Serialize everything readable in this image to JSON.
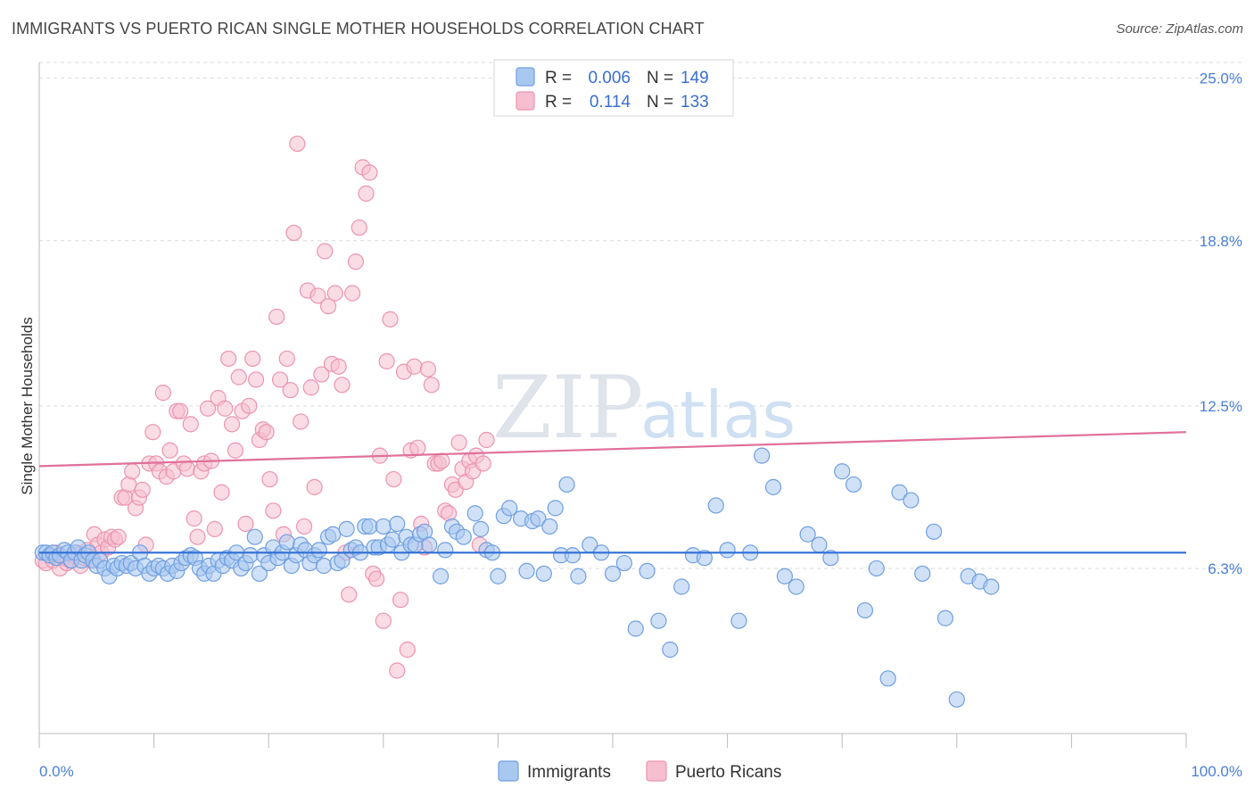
{
  "title": "IMMIGRANTS VS PUERTO RICAN SINGLE MOTHER HOUSEHOLDS CORRELATION CHART",
  "source": "Source: ZipAtlas.com",
  "watermark": {
    "zip": "ZIP",
    "atlas": "atlas"
  },
  "colors": {
    "blue_fill": "#a9c8f0",
    "blue_stroke": "#6f9fe0",
    "blue_line": "#2f6fd6",
    "pink_fill": "#f6bfd0",
    "pink_stroke": "#ec93b0",
    "pink_line": "#e0709a",
    "tick_text": "#4a7fd6",
    "grid": "#d9d9d9"
  },
  "legend": {
    "rows": [
      {
        "r_label": "R =",
        "r_value": "0.006",
        "n_label": "N =",
        "n_value": "149"
      },
      {
        "r_label": "R =",
        "r_value": "0.114",
        "n_label": "N =",
        "n_value": "133"
      }
    ]
  },
  "bottom_legend": {
    "series1": "Immigrants",
    "series2": "Puerto Ricans"
  },
  "chart_data": {
    "type": "scatter",
    "title": "IMMIGRANTS VS PUERTO RICAN SINGLE MOTHER HOUSEHOLDS CORRELATION CHART",
    "xlabel": "",
    "ylabel": "Single Mother Households",
    "xlim": [
      0,
      100
    ],
    "ylim": [
      0,
      25.6
    ],
    "x_tick_labels": [
      "0.0%",
      "100.0%"
    ],
    "y_ticks": [
      6.3,
      12.5,
      18.8,
      25.0
    ],
    "y_tick_labels": [
      "6.3%",
      "12.5%",
      "18.8%",
      "25.0%"
    ],
    "grid": true,
    "legend_position": "top-center",
    "series": [
      {
        "name": "Immigrants",
        "r": 0.006,
        "n": 149,
        "trend": {
          "x": [
            0,
            100
          ],
          "y": [
            6.9,
            6.9
          ]
        },
        "points": [
          [
            0.3,
            6.9
          ],
          [
            0.6,
            6.9
          ],
          [
            0.9,
            6.8
          ],
          [
            1.2,
            6.9
          ],
          [
            1.5,
            6.7
          ],
          [
            1.8,
            6.8
          ],
          [
            2.2,
            7.0
          ],
          [
            2.5,
            6.9
          ],
          [
            2.8,
            6.6
          ],
          [
            3.1,
            6.9
          ],
          [
            3.4,
            7.1
          ],
          [
            3.7,
            6.6
          ],
          [
            4.0,
            6.8
          ],
          [
            4.3,
            6.9
          ],
          [
            4.7,
            6.6
          ],
          [
            5.0,
            6.4
          ],
          [
            5.3,
            6.6
          ],
          [
            5.7,
            6.3
          ],
          [
            6.1,
            6.0
          ],
          [
            6.5,
            6.4
          ],
          [
            6.8,
            6.3
          ],
          [
            7.2,
            6.5
          ],
          [
            7.6,
            6.4
          ],
          [
            8.0,
            6.5
          ],
          [
            8.4,
            6.3
          ],
          [
            8.8,
            6.9
          ],
          [
            9.2,
            6.4
          ],
          [
            9.6,
            6.1
          ],
          [
            10.0,
            6.3
          ],
          [
            10.4,
            6.4
          ],
          [
            10.8,
            6.3
          ],
          [
            11.2,
            6.1
          ],
          [
            11.6,
            6.4
          ],
          [
            12.0,
            6.2
          ],
          [
            12.4,
            6.5
          ],
          [
            12.8,
            6.7
          ],
          [
            13.2,
            6.8
          ],
          [
            13.6,
            6.7
          ],
          [
            14.0,
            6.3
          ],
          [
            14.4,
            6.1
          ],
          [
            14.8,
            6.4
          ],
          [
            15.2,
            6.1
          ],
          [
            15.6,
            6.6
          ],
          [
            16.0,
            6.4
          ],
          [
            16.4,
            6.7
          ],
          [
            16.8,
            6.6
          ],
          [
            17.2,
            6.9
          ],
          [
            17.6,
            6.3
          ],
          [
            18.0,
            6.5
          ],
          [
            18.4,
            6.8
          ],
          [
            18.8,
            7.5
          ],
          [
            19.2,
            6.1
          ],
          [
            19.6,
            6.8
          ],
          [
            20.0,
            6.5
          ],
          [
            20.4,
            7.1
          ],
          [
            20.8,
            6.7
          ],
          [
            21.2,
            6.9
          ],
          [
            21.6,
            7.3
          ],
          [
            22.0,
            6.4
          ],
          [
            22.4,
            6.8
          ],
          [
            22.8,
            7.2
          ],
          [
            23.2,
            7.0
          ],
          [
            23.6,
            6.5
          ],
          [
            24.0,
            6.8
          ],
          [
            24.4,
            7.0
          ],
          [
            24.8,
            6.4
          ],
          [
            25.2,
            7.5
          ],
          [
            25.6,
            7.6
          ],
          [
            26.0,
            6.5
          ],
          [
            26.4,
            6.6
          ],
          [
            26.8,
            7.8
          ],
          [
            27.2,
            7.0
          ],
          [
            27.6,
            7.1
          ],
          [
            28.0,
            6.9
          ],
          [
            28.4,
            7.9
          ],
          [
            28.8,
            7.9
          ],
          [
            29.2,
            7.1
          ],
          [
            29.6,
            7.1
          ],
          [
            30.0,
            7.9
          ],
          [
            30.4,
            7.2
          ],
          [
            30.8,
            7.4
          ],
          [
            31.2,
            8.0
          ],
          [
            31.6,
            6.9
          ],
          [
            32.0,
            7.5
          ],
          [
            32.4,
            7.2
          ],
          [
            32.8,
            7.2
          ],
          [
            33.2,
            7.6
          ],
          [
            33.6,
            7.7
          ],
          [
            34.0,
            7.2
          ],
          [
            35.0,
            6.0
          ],
          [
            35.4,
            7.0
          ],
          [
            36.0,
            7.9
          ],
          [
            36.4,
            7.7
          ],
          [
            37.0,
            7.5
          ],
          [
            38.0,
            8.4
          ],
          [
            38.5,
            7.8
          ],
          [
            39.0,
            7.0
          ],
          [
            39.5,
            6.9
          ],
          [
            40.0,
            6.0
          ],
          [
            40.5,
            8.3
          ],
          [
            41.0,
            8.6
          ],
          [
            42.0,
            8.2
          ],
          [
            42.5,
            6.2
          ],
          [
            43.0,
            8.1
          ],
          [
            43.5,
            8.2
          ],
          [
            44.0,
            6.1
          ],
          [
            44.5,
            7.9
          ],
          [
            45.0,
            8.6
          ],
          [
            45.5,
            6.8
          ],
          [
            46.0,
            9.5
          ],
          [
            46.5,
            6.8
          ],
          [
            47.0,
            6.0
          ],
          [
            48.0,
            7.2
          ],
          [
            49.0,
            6.9
          ],
          [
            50.0,
            6.1
          ],
          [
            51.0,
            6.5
          ],
          [
            52.0,
            4.0
          ],
          [
            53.0,
            6.2
          ],
          [
            54.0,
            4.3
          ],
          [
            55.0,
            3.2
          ],
          [
            56.0,
            5.6
          ],
          [
            57.0,
            6.8
          ],
          [
            58.0,
            6.7
          ],
          [
            59.0,
            8.7
          ],
          [
            60.0,
            7.0
          ],
          [
            61.0,
            4.3
          ],
          [
            62.0,
            6.9
          ],
          [
            63.0,
            10.6
          ],
          [
            64.0,
            9.4
          ],
          [
            65.0,
            6.0
          ],
          [
            66.0,
            5.6
          ],
          [
            67.0,
            7.6
          ],
          [
            68.0,
            7.2
          ],
          [
            69.0,
            6.7
          ],
          [
            70.0,
            10.0
          ],
          [
            71.0,
            9.5
          ],
          [
            72.0,
            4.7
          ],
          [
            73.0,
            6.3
          ],
          [
            74.0,
            2.1
          ],
          [
            75.0,
            9.2
          ],
          [
            76.0,
            8.9
          ],
          [
            77.0,
            6.1
          ],
          [
            78.0,
            7.7
          ],
          [
            79.0,
            4.4
          ],
          [
            80.0,
            1.3
          ],
          [
            81.0,
            6.0
          ],
          [
            82.0,
            5.8
          ],
          [
            83.0,
            5.6
          ]
        ]
      },
      {
        "name": "Puerto Ricans",
        "r": 0.114,
        "n": 133,
        "trend": {
          "x": [
            0,
            100
          ],
          "y": [
            10.2,
            11.5
          ]
        },
        "points": [
          [
            0.3,
            6.6
          ],
          [
            0.6,
            6.5
          ],
          [
            0.9,
            6.8
          ],
          [
            1.2,
            6.6
          ],
          [
            1.5,
            6.9
          ],
          [
            1.8,
            6.3
          ],
          [
            2.1,
            6.7
          ],
          [
            2.4,
            6.5
          ],
          [
            2.7,
            6.6
          ],
          [
            3.0,
            6.8
          ],
          [
            3.3,
            6.9
          ],
          [
            3.6,
            6.4
          ],
          [
            3.9,
            6.7
          ],
          [
            4.2,
            7.0
          ],
          [
            4.5,
            6.6
          ],
          [
            4.8,
            7.6
          ],
          [
            5.1,
            7.2
          ],
          [
            5.4,
            6.9
          ],
          [
            5.7,
            7.4
          ],
          [
            6.0,
            7.1
          ],
          [
            6.3,
            7.5
          ],
          [
            6.6,
            7.4
          ],
          [
            6.9,
            7.5
          ],
          [
            7.2,
            9.0
          ],
          [
            7.5,
            9.0
          ],
          [
            7.8,
            9.5
          ],
          [
            8.1,
            10.0
          ],
          [
            8.4,
            8.6
          ],
          [
            8.7,
            9.0
          ],
          [
            9.0,
            9.3
          ],
          [
            9.3,
            7.2
          ],
          [
            9.6,
            10.3
          ],
          [
            9.9,
            11.5
          ],
          [
            10.2,
            10.3
          ],
          [
            10.5,
            10.0
          ],
          [
            10.8,
            13.0
          ],
          [
            11.1,
            9.8
          ],
          [
            11.4,
            10.8
          ],
          [
            11.7,
            10.0
          ],
          [
            12.0,
            12.3
          ],
          [
            12.3,
            12.3
          ],
          [
            12.6,
            10.3
          ],
          [
            12.9,
            10.1
          ],
          [
            13.2,
            11.8
          ],
          [
            13.5,
            8.2
          ],
          [
            13.8,
            7.5
          ],
          [
            14.1,
            10.0
          ],
          [
            14.4,
            10.3
          ],
          [
            14.7,
            12.4
          ],
          [
            15.0,
            10.4
          ],
          [
            15.3,
            7.8
          ],
          [
            15.6,
            12.8
          ],
          [
            15.9,
            9.2
          ],
          [
            16.2,
            12.4
          ],
          [
            16.5,
            14.3
          ],
          [
            16.8,
            11.8
          ],
          [
            17.1,
            10.8
          ],
          [
            17.4,
            13.6
          ],
          [
            17.7,
            12.3
          ],
          [
            18.0,
            8.0
          ],
          [
            18.3,
            12.5
          ],
          [
            18.6,
            14.3
          ],
          [
            18.9,
            13.5
          ],
          [
            19.2,
            11.2
          ],
          [
            19.5,
            11.6
          ],
          [
            19.8,
            11.5
          ],
          [
            20.1,
            9.7
          ],
          [
            20.4,
            8.5
          ],
          [
            20.7,
            15.9
          ],
          [
            21.0,
            13.5
          ],
          [
            21.3,
            7.6
          ],
          [
            21.6,
            14.3
          ],
          [
            21.9,
            13.1
          ],
          [
            22.2,
            19.1
          ],
          [
            22.5,
            22.5
          ],
          [
            22.8,
            11.9
          ],
          [
            23.1,
            7.9
          ],
          [
            23.4,
            16.9
          ],
          [
            23.7,
            13.2
          ],
          [
            24.0,
            9.4
          ],
          [
            24.3,
            16.7
          ],
          [
            24.6,
            13.7
          ],
          [
            24.9,
            18.4
          ],
          [
            25.2,
            16.3
          ],
          [
            25.5,
            14.1
          ],
          [
            25.8,
            16.8
          ],
          [
            26.1,
            14.0
          ],
          [
            26.4,
            13.3
          ],
          [
            26.7,
            6.9
          ],
          [
            27.0,
            5.3
          ],
          [
            27.3,
            16.8
          ],
          [
            27.6,
            18.0
          ],
          [
            27.9,
            19.3
          ],
          [
            28.2,
            21.6
          ],
          [
            28.5,
            20.6
          ],
          [
            28.8,
            21.4
          ],
          [
            29.1,
            6.1
          ],
          [
            29.4,
            5.9
          ],
          [
            29.7,
            10.6
          ],
          [
            30.0,
            4.3
          ],
          [
            30.3,
            14.2
          ],
          [
            30.6,
            15.8
          ],
          [
            30.9,
            9.7
          ],
          [
            31.2,
            2.4
          ],
          [
            31.5,
            5.1
          ],
          [
            31.8,
            13.8
          ],
          [
            32.1,
            3.2
          ],
          [
            32.4,
            10.8
          ],
          [
            32.7,
            14.0
          ],
          [
            33.0,
            10.9
          ],
          [
            33.3,
            8.0
          ],
          [
            33.6,
            7.1
          ],
          [
            33.9,
            13.9
          ],
          [
            34.2,
            13.3
          ],
          [
            34.5,
            10.3
          ],
          [
            34.8,
            10.3
          ],
          [
            35.1,
            10.4
          ],
          [
            35.4,
            8.5
          ],
          [
            35.7,
            8.4
          ],
          [
            36.0,
            9.5
          ],
          [
            36.3,
            9.3
          ],
          [
            36.6,
            11.1
          ],
          [
            36.9,
            10.1
          ],
          [
            37.2,
            9.6
          ],
          [
            37.5,
            10.4
          ],
          [
            37.8,
            10.0
          ],
          [
            38.1,
            10.6
          ],
          [
            38.4,
            7.2
          ],
          [
            38.7,
            10.3
          ],
          [
            39.0,
            11.2
          ]
        ]
      }
    ]
  }
}
